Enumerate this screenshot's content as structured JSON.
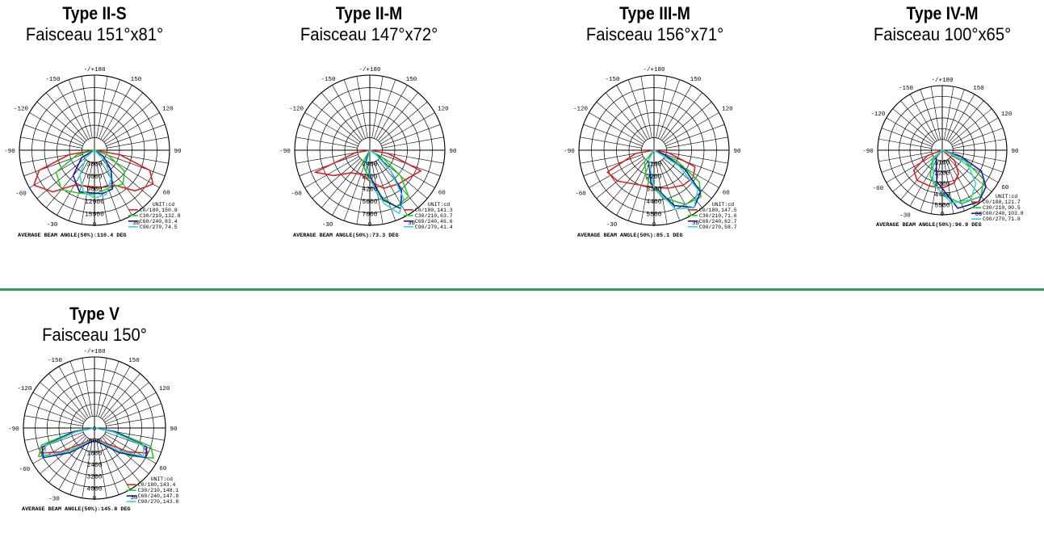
{
  "charts": [
    {
      "title": "Type II-S",
      "subtitle": "Faisceau 151°x81°",
      "rings": [
        "3000",
        "6000",
        "9000",
        "12900",
        "15900"
      ],
      "unit": "UNIT:cd",
      "legend": [
        "C0/180,150.8",
        "C30/210,132.8",
        "C60/240,83.4",
        "C90/270,74.5"
      ],
      "avg": "AVERAGE BEAM ANGLE(50%):110.4 DEG"
    },
    {
      "title": "Type II-M",
      "subtitle": "Faisceau 147°x72°",
      "rings": [
        "1400",
        "2800",
        "4200",
        "5600",
        "7000"
      ],
      "unit": "UNIT:cd",
      "legend": [
        "C0/180,141.3",
        "C30/210,63.7",
        "C60/240,46.6",
        "C90/270,41.4"
      ],
      "avg": "AVERAGE BEAM ANGLE(50%):73.3 DEG"
    },
    {
      "title": "Type III-M",
      "subtitle": "Faisceau 156°x71°",
      "rings": [
        "1100",
        "2200",
        "3300",
        "4400",
        "5500"
      ],
      "unit": "UNIT:cd",
      "legend": [
        "C0/180,147.5",
        "C30/210,71.6",
        "C60/240,62.7",
        "C90/270,58.7"
      ],
      "avg": "AVERAGE BEAM ANGLE(50%):85.1 DEG"
    },
    {
      "title": "Type IV-M",
      "subtitle": "Faisceau 100°x65°",
      "rings": [
        "1100",
        "2200",
        "3300",
        "4400",
        "5500"
      ],
      "unit": "UNIT:cd",
      "legend": [
        "C0/180,121.7",
        "C30/210,90.5",
        "C60/240,103.8",
        "C90/270,71.8"
      ],
      "avg": "AVERAGE BEAM ANGLE(50%):96.9 DEG"
    },
    {
      "title": "Type V",
      "subtitle": "Faisceau 150°",
      "rings": [
        "800",
        "1600",
        "2400",
        "3200",
        "4000"
      ],
      "center_label": "0",
      "unit": "UNIT:cd",
      "legend": [
        "C0/180,143.4",
        "C30/210,148.1",
        "C60/240,147.8",
        "C90/270,143.8"
      ],
      "avg": "AVERAGE BEAM ANGLE(50%):145.8 DEG"
    }
  ],
  "angle_labels": {
    "top": "-/+180",
    "upper_left": "-150",
    "upper_right": "150",
    "left_120": "-120",
    "right_120": "120",
    "left_90": "-90",
    "right_90": "90",
    "left_60": "-60",
    "right_60": "60",
    "left_30": "-30",
    "right_30": "30",
    "bottom": "0"
  },
  "colors": {
    "c0": "#e02020",
    "c30": "#22cc22",
    "c60": "#1a1aa8",
    "c90": "#33d6d0",
    "divider": "#2e9e55"
  }
}
